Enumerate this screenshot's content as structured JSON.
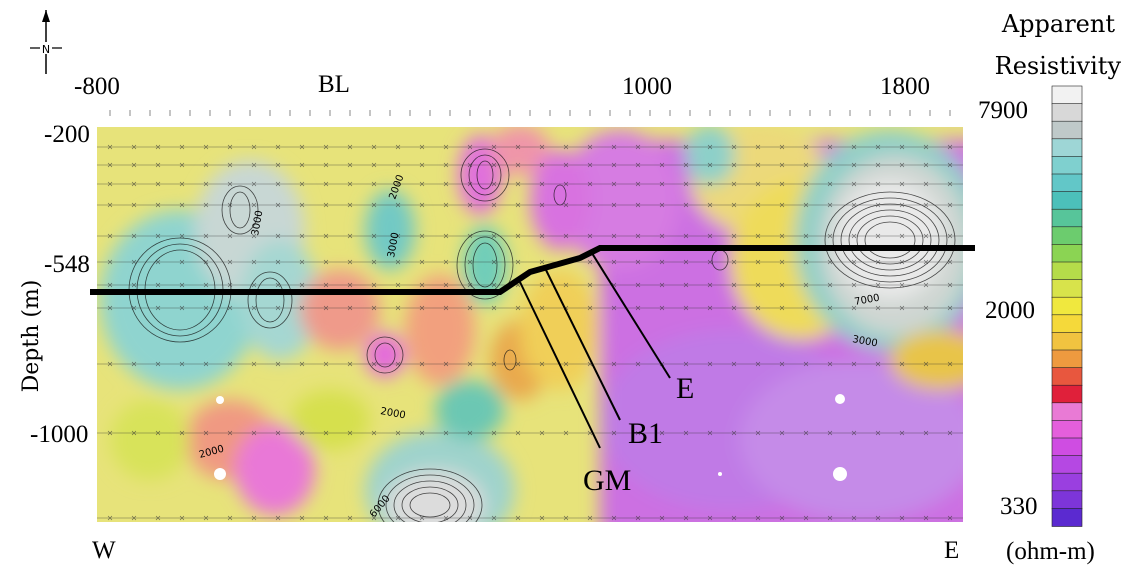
{
  "chart_data": {
    "type": "heatmap",
    "title": "",
    "x_ticks": [
      "-800",
      "BL",
      "1000",
      "1800"
    ],
    "y_ticks": [
      "-200",
      "-548",
      "-1000"
    ],
    "ylabel": "Depth (m)",
    "direction_left": "W",
    "direction_right": "E",
    "north_arrow": "N",
    "colorbar": {
      "title_line1": "Apparent",
      "title_line2": "Resistivity",
      "unit": "(ohm-m)",
      "tick_labels": [
        "7900",
        "2000",
        "330"
      ],
      "colors": [
        "#f2f2f2",
        "#d8d8d8",
        "#bfc9c9",
        "#9ed6d6",
        "#7fd0cf",
        "#62c7c8",
        "#4cc0ba",
        "#57c59a",
        "#6ccc6e",
        "#8bd453",
        "#b5dc4a",
        "#d8e34b",
        "#f0e83e",
        "#f5d93a",
        "#f1c340",
        "#ee9a3f",
        "#e8573e",
        "#e0203a",
        "#e97ad5",
        "#e45fdc",
        "#cf4de2",
        "#b548e3",
        "#9a3fe0",
        "#7d35d9",
        "#5b2ad0"
      ]
    },
    "contour_labels": [
      "2000",
      "3000",
      "3000",
      "2000",
      "2000",
      "6000",
      "7000",
      "3000"
    ],
    "annotations": [
      "E",
      "B1",
      "GM"
    ]
  }
}
